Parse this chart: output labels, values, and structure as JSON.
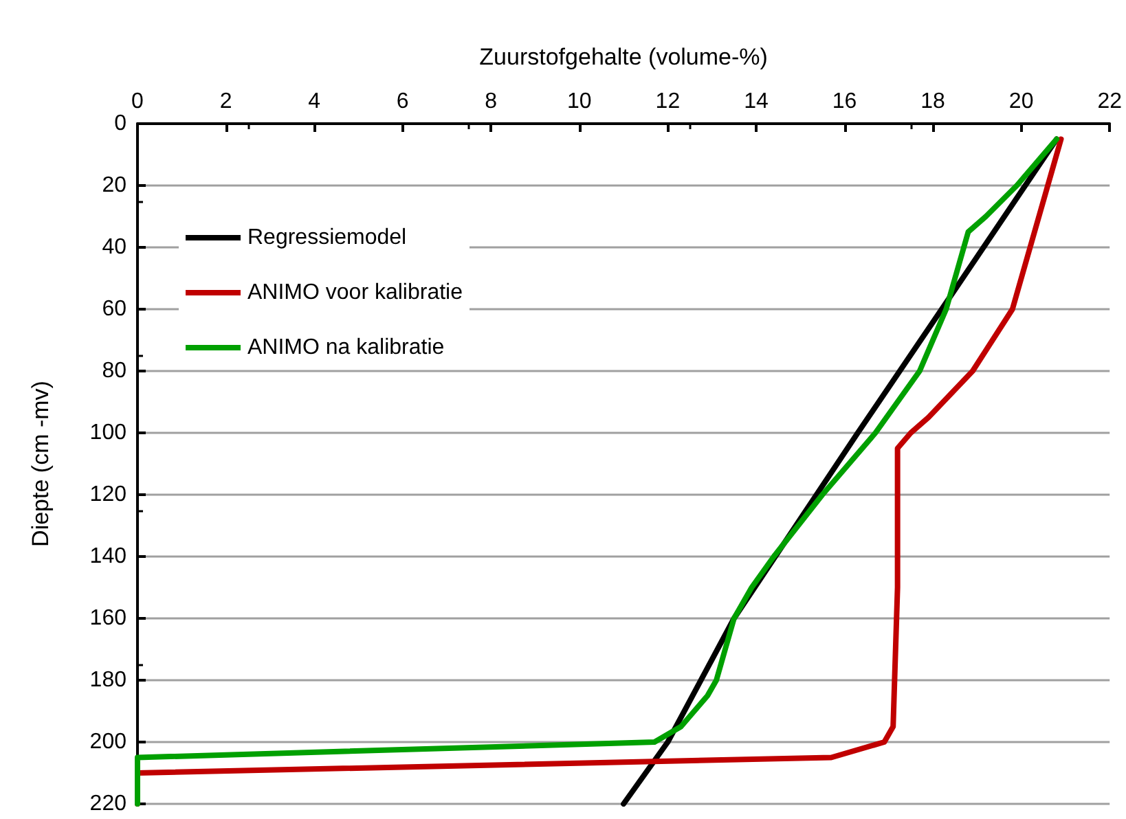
{
  "chart_data": {
    "type": "line",
    "xlabel": "Zuurstofgehalte (volume-%)",
    "ylabel": "Diepte (cm -mv)",
    "xlim": [
      0,
      22
    ],
    "xticks": [
      0,
      2,
      4,
      6,
      8,
      10,
      12,
      14,
      16,
      18,
      20,
      22
    ],
    "ylim": [
      220,
      0
    ],
    "yticks": [
      0,
      20,
      40,
      60,
      80,
      100,
      120,
      140,
      160,
      180,
      200,
      220
    ],
    "grid": "y",
    "legend": "top left",
    "marker": "none",
    "line_style": "solid",
    "series": [
      {
        "name": "Regressiemodel",
        "color": "#000000",
        "x": [
          20.8,
          18.2,
          16.3,
          13.5,
          12.0,
          11.0
        ],
        "values": [
          5,
          60,
          100,
          160,
          200,
          220
        ]
      },
      {
        "name": "ANIMO voor kalibratie",
        "color": "#c00000",
        "x": [
          20.9,
          20.6,
          20.2,
          19.8,
          18.9,
          17.9,
          17.5,
          17.2,
          17.2,
          17.1,
          16.9,
          15.7,
          0,
          0
        ],
        "values": [
          5,
          20,
          40,
          60,
          80,
          95,
          100,
          105,
          150,
          195,
          200,
          205,
          210,
          220
        ]
      },
      {
        "name": "ANIMO na kalibratie",
        "color": "#00a000",
        "x": [
          20.8,
          19.9,
          19.2,
          18.8,
          18.6,
          18.3,
          17.7,
          16.7,
          15.5,
          14.4,
          13.9,
          13.5,
          13.1,
          12.9,
          12.6,
          12.3,
          11.7,
          0,
          0
        ],
        "values": [
          5,
          20,
          30,
          35,
          45,
          60,
          80,
          100,
          120,
          140,
          150,
          160,
          180,
          185,
          190,
          195,
          200,
          205,
          220
        ]
      }
    ]
  }
}
